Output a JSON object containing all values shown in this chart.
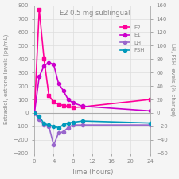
{
  "title": "E2 0.5 mg sublingual",
  "xlabel": "Time (hours)",
  "ylabel_left": "Estradiol, estrone levels (pg/mL)",
  "ylabel_right": "LH, FSH levels (% change)",
  "ylim_left": [
    -300,
    800
  ],
  "ylim_right": [
    -60,
    160
  ],
  "yticks_left": [
    -300,
    -200,
    -100,
    0,
    100,
    200,
    300,
    400,
    500,
    600,
    700,
    800
  ],
  "yticks_right": [
    -60,
    -40,
    -20,
    0,
    20,
    40,
    60,
    80,
    100,
    120,
    140,
    160
  ],
  "xticks": [
    0,
    4,
    8,
    12,
    16,
    20,
    24
  ],
  "xlim": [
    0,
    24
  ],
  "E2": {
    "x": [
      0,
      1,
      2,
      3,
      4,
      5,
      6,
      7,
      8,
      10,
      24
    ],
    "y": [
      0,
      770,
      400,
      130,
      80,
      65,
      55,
      50,
      40,
      45,
      100
    ],
    "color": "#ff0099",
    "marker": "s",
    "markersize": 3,
    "linewidth": 1.2,
    "label": "E2"
  },
  "E1": {
    "x": [
      0,
      1,
      2,
      3,
      4,
      5,
      6,
      7,
      8,
      10,
      24
    ],
    "y": [
      0,
      270,
      350,
      375,
      360,
      220,
      165,
      100,
      75,
      50,
      15
    ],
    "color": "#cc00cc",
    "marker": "o",
    "markersize": 3,
    "linewidth": 1.2,
    "label": "E1"
  },
  "LH": {
    "x": [
      0,
      1,
      2,
      3,
      4,
      5,
      6,
      7,
      8,
      10,
      24
    ],
    "y": [
      0,
      -10,
      -18,
      -20,
      -48,
      -30,
      -28,
      -22,
      -18,
      -18,
      -18
    ],
    "color": "#9966cc",
    "marker": "o",
    "markersize": 3,
    "linewidth": 1.2,
    "label": "LH"
  },
  "FSH": {
    "x": [
      0,
      1,
      2,
      3,
      4,
      5,
      6,
      7,
      8,
      10,
      24
    ],
    "y": [
      0,
      -5,
      -16,
      -18,
      -20,
      -22,
      -18,
      -15,
      -14,
      -12,
      -15
    ],
    "color": "#0099bb",
    "marker": "o",
    "markersize": 3,
    "linewidth": 1.2,
    "label": "FSH"
  },
  "background_color": "#f5f5f5",
  "grid_color": "#dddddd",
  "text_color": "#888888",
  "spine_color": "#aaaaaa"
}
